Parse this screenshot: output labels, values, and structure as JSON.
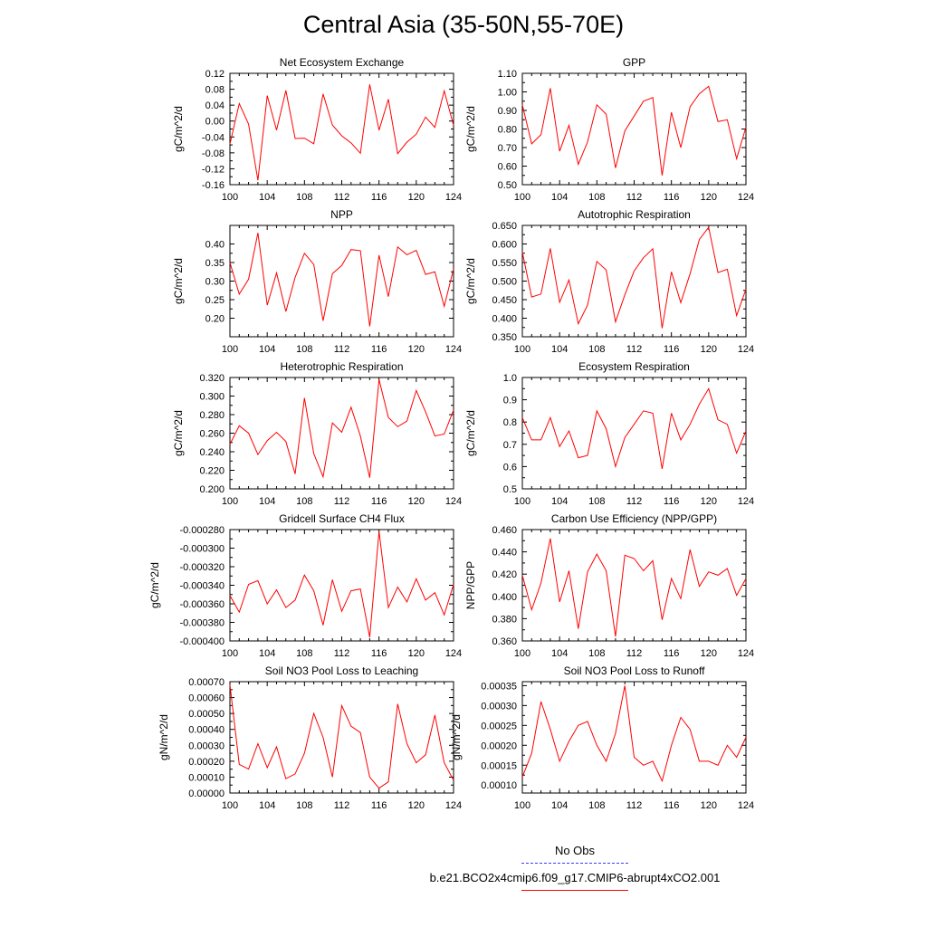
{
  "title": "Central Asia (35-50N,55-70E)",
  "legend": {
    "items": [
      {
        "label": "No Obs",
        "color": "#3a3aff",
        "dashed": true
      },
      {
        "label": "b.e21.BCO2x4cmip6.f09_g17.CMIP6-abrupt4xCO2.001",
        "color": "#ff0000",
        "dashed": false
      }
    ]
  },
  "chart_data": [
    {
      "type": "line",
      "title": "Net Ecosystem Exchange",
      "ylabel": "gC/m^2/d",
      "xlim": [
        100,
        124
      ],
      "ylim": [
        -0.16,
        0.12
      ],
      "xticks": [
        "100",
        "104",
        "108",
        "112",
        "116",
        "120",
        "124"
      ],
      "yticks": [
        "-0.16",
        "-0.12",
        "-0.08",
        "-0.04",
        "0.00",
        "0.04",
        "0.08",
        "0.12"
      ],
      "series": [
        {
          "color": "#ff0000",
          "x": [
            100,
            101,
            102,
            103,
            104,
            105,
            106,
            107,
            108,
            109,
            110,
            111,
            112,
            113,
            114,
            115,
            116,
            117,
            118,
            119,
            120,
            121,
            122,
            123,
            124
          ],
          "y": [
            -0.058,
            0.044,
            -0.008,
            -0.149,
            0.064,
            -0.023,
            0.077,
            -0.044,
            -0.043,
            -0.057,
            0.068,
            -0.01,
            -0.037,
            -0.055,
            -0.081,
            0.092,
            -0.023,
            0.055,
            -0.082,
            -0.053,
            -0.033,
            0.01,
            -0.016,
            0.076,
            -0.011
          ]
        }
      ]
    },
    {
      "type": "line",
      "title": "GPP",
      "ylabel": "gC/m^2/d",
      "xlim": [
        100,
        124
      ],
      "ylim": [
        0.5,
        1.1
      ],
      "xticks": [
        "100",
        "104",
        "108",
        "112",
        "116",
        "120",
        "124"
      ],
      "yticks": [
        "0.50",
        "0.60",
        "0.70",
        "0.80",
        "0.90",
        "1.00",
        "1.10"
      ],
      "series": [
        {
          "color": "#ff0000",
          "x": [
            100,
            101,
            102,
            103,
            104,
            105,
            106,
            107,
            108,
            109,
            110,
            111,
            112,
            113,
            114,
            115,
            116,
            117,
            118,
            119,
            120,
            121,
            122,
            123,
            124
          ],
          "y": [
            0.93,
            0.72,
            0.77,
            1.02,
            0.68,
            0.82,
            0.61,
            0.73,
            0.93,
            0.88,
            0.59,
            0.79,
            0.87,
            0.95,
            0.97,
            0.55,
            0.89,
            0.7,
            0.92,
            0.99,
            1.03,
            0.84,
            0.85,
            0.64,
            0.81
          ]
        }
      ]
    },
    {
      "type": "line",
      "title": "NPP",
      "ylabel": "gC/m^2/d",
      "xlim": [
        100,
        124
      ],
      "ylim": [
        0.15,
        0.45
      ],
      "xticks": [
        "100",
        "104",
        "108",
        "112",
        "116",
        "120",
        "124"
      ],
      "yticks": [
        "0.20",
        "0.25",
        "0.30",
        "0.35",
        "0.40"
      ],
      "yticklevels": [
        0.2,
        0.25,
        0.3,
        0.35,
        0.4
      ],
      "series": [
        {
          "color": "#ff0000",
          "x": [
            100,
            101,
            102,
            103,
            104,
            105,
            106,
            107,
            108,
            109,
            110,
            111,
            112,
            113,
            114,
            115,
            116,
            117,
            118,
            119,
            120,
            121,
            122,
            123,
            124
          ],
          "y": [
            0.35,
            0.265,
            0.305,
            0.43,
            0.235,
            0.322,
            0.218,
            0.31,
            0.375,
            0.345,
            0.193,
            0.32,
            0.342,
            0.385,
            0.382,
            0.178,
            0.37,
            0.258,
            0.392,
            0.371,
            0.383,
            0.318,
            0.325,
            0.232,
            0.333
          ]
        }
      ]
    },
    {
      "type": "line",
      "title": "Autotrophic Respiration",
      "ylabel": "gC/m^2/d",
      "xlim": [
        100,
        124
      ],
      "ylim": [
        0.35,
        0.65
      ],
      "xticks": [
        "100",
        "104",
        "108",
        "112",
        "116",
        "120",
        "124"
      ],
      "yticks": [
        "0.350",
        "0.400",
        "0.450",
        "0.500",
        "0.550",
        "0.600",
        "0.650"
      ],
      "series": [
        {
          "color": "#ff0000",
          "x": [
            100,
            101,
            102,
            103,
            104,
            105,
            106,
            107,
            108,
            109,
            110,
            111,
            112,
            113,
            114,
            115,
            116,
            117,
            118,
            119,
            120,
            121,
            122,
            123,
            124
          ],
          "y": [
            0.578,
            0.457,
            0.465,
            0.588,
            0.443,
            0.503,
            0.385,
            0.435,
            0.553,
            0.53,
            0.39,
            0.463,
            0.527,
            0.563,
            0.587,
            0.373,
            0.525,
            0.442,
            0.52,
            0.612,
            0.645,
            0.523,
            0.532,
            0.407,
            0.478
          ]
        }
      ]
    },
    {
      "type": "line",
      "title": "Heterotrophic Respiration",
      "ylabel": "gC/m^2/d",
      "xlim": [
        100,
        124
      ],
      "ylim": [
        0.2,
        0.32
      ],
      "xticks": [
        "100",
        "104",
        "108",
        "112",
        "116",
        "120",
        "124"
      ],
      "yticks": [
        "0.200",
        "0.220",
        "0.240",
        "0.260",
        "0.280",
        "0.300",
        "0.320"
      ],
      "series": [
        {
          "color": "#ff0000",
          "x": [
            100,
            101,
            102,
            103,
            104,
            105,
            106,
            107,
            108,
            109,
            110,
            111,
            112,
            113,
            114,
            115,
            116,
            117,
            118,
            119,
            120,
            121,
            122,
            123,
            124
          ],
          "y": [
            0.248,
            0.268,
            0.26,
            0.237,
            0.252,
            0.261,
            0.251,
            0.216,
            0.298,
            0.238,
            0.213,
            0.271,
            0.261,
            0.288,
            0.257,
            0.212,
            0.318,
            0.277,
            0.267,
            0.273,
            0.306,
            0.283,
            0.257,
            0.259,
            0.285
          ]
        }
      ]
    },
    {
      "type": "line",
      "title": "Ecosystem Respiration",
      "ylabel": "gC/m^2/d",
      "xlim": [
        100,
        124
      ],
      "ylim": [
        0.5,
        1.0
      ],
      "xticks": [
        "100",
        "104",
        "108",
        "112",
        "116",
        "120",
        "124"
      ],
      "yticks": [
        "0.5",
        "0.6",
        "0.7",
        "0.8",
        "0.9",
        "1.0"
      ],
      "series": [
        {
          "color": "#ff0000",
          "x": [
            100,
            101,
            102,
            103,
            104,
            105,
            106,
            107,
            108,
            109,
            110,
            111,
            112,
            113,
            114,
            115,
            116,
            117,
            118,
            119,
            120,
            121,
            122,
            123,
            124
          ],
          "y": [
            0.82,
            0.72,
            0.72,
            0.82,
            0.69,
            0.76,
            0.64,
            0.65,
            0.85,
            0.77,
            0.6,
            0.73,
            0.79,
            0.85,
            0.84,
            0.59,
            0.84,
            0.72,
            0.79,
            0.88,
            0.95,
            0.81,
            0.79,
            0.66,
            0.76
          ]
        }
      ]
    },
    {
      "type": "line",
      "title": "Gridcell Surface CH4 Flux",
      "ylabel": "gC/m^2/d",
      "xlim": [
        100,
        124
      ],
      "ylim": [
        -0.0004,
        -0.00028
      ],
      "xticks": [
        "100",
        "104",
        "108",
        "112",
        "116",
        "120",
        "124"
      ],
      "yticks": [
        "-0.000400",
        "-0.000380",
        "-0.000360",
        "-0.000340",
        "-0.000320",
        "-0.000300",
        "-0.000280"
      ],
      "series": [
        {
          "color": "#ff0000",
          "x": [
            100,
            101,
            102,
            103,
            104,
            105,
            106,
            107,
            108,
            109,
            110,
            111,
            112,
            113,
            114,
            115,
            116,
            117,
            118,
            119,
            120,
            121,
            122,
            123,
            124
          ],
          "y": [
            -0.000351,
            -0.000369,
            -0.000339,
            -0.000335,
            -0.00036,
            -0.000345,
            -0.000364,
            -0.000356,
            -0.000329,
            -0.000346,
            -0.000383,
            -0.000334,
            -0.000368,
            -0.000346,
            -0.000344,
            -0.000396,
            -0.000282,
            -0.000364,
            -0.000342,
            -0.000358,
            -0.000333,
            -0.000356,
            -0.000348,
            -0.000372,
            -0.000339
          ]
        }
      ]
    },
    {
      "type": "line",
      "title": "Carbon Use Efficiency (NPP/GPP)",
      "ylabel": "NPP/GPP",
      "xlim": [
        100,
        124
      ],
      "ylim": [
        0.36,
        0.46
      ],
      "xticks": [
        "100",
        "104",
        "108",
        "112",
        "116",
        "120",
        "124"
      ],
      "yticks": [
        "0.360",
        "0.380",
        "0.400",
        "0.420",
        "0.440",
        "0.460"
      ],
      "series": [
        {
          "color": "#ff0000",
          "x": [
            100,
            101,
            102,
            103,
            104,
            105,
            106,
            107,
            108,
            109,
            110,
            111,
            112,
            113,
            114,
            115,
            116,
            117,
            118,
            119,
            120,
            121,
            122,
            123,
            124
          ],
          "y": [
            0.419,
            0.388,
            0.412,
            0.452,
            0.395,
            0.423,
            0.371,
            0.422,
            0.438,
            0.423,
            0.364,
            0.437,
            0.434,
            0.423,
            0.432,
            0.379,
            0.416,
            0.398,
            0.442,
            0.409,
            0.422,
            0.419,
            0.425,
            0.401,
            0.416
          ]
        }
      ]
    },
    {
      "type": "line",
      "title": "Soil NO3 Pool Loss to Leaching",
      "ylabel": "gN/m^2/d",
      "xlim": [
        100,
        124
      ],
      "ylim": [
        0.0,
        0.0007
      ],
      "xticks": [
        "100",
        "104",
        "108",
        "112",
        "116",
        "120",
        "124"
      ],
      "yticks": [
        "0.00000",
        "0.00010",
        "0.00020",
        "0.00030",
        "0.00040",
        "0.00050",
        "0.00060",
        "0.00070"
      ],
      "series": [
        {
          "color": "#ff0000",
          "x": [
            100,
            101,
            102,
            103,
            104,
            105,
            106,
            107,
            108,
            109,
            110,
            111,
            112,
            113,
            114,
            115,
            116,
            117,
            118,
            119,
            120,
            121,
            122,
            123,
            124
          ],
          "y": [
            0.00068,
            0.00018,
            0.00015,
            0.00031,
            0.00016,
            0.00029,
            9e-05,
            0.00012,
            0.00025,
            0.0005,
            0.00035,
            0.0001,
            0.00055,
            0.00042,
            0.00038,
            0.0001,
            3e-05,
            7e-05,
            0.00056,
            0.00031,
            0.00019,
            0.00024,
            0.00049,
            0.00019,
            8e-05
          ]
        }
      ]
    },
    {
      "type": "line",
      "title": "Soil NO3 Pool Loss to Runoff",
      "ylabel": "gN/m^2/d",
      "xlim": [
        100,
        124
      ],
      "ylim": [
        8e-05,
        0.00036
      ],
      "xticks": [
        "100",
        "104",
        "108",
        "112",
        "116",
        "120",
        "124"
      ],
      "yticks": [
        "0.00010",
        "0.00015",
        "0.00020",
        "0.00025",
        "0.00030",
        "0.00035"
      ],
      "yticklevels": [
        0.0001,
        0.00015,
        0.0002,
        0.00025,
        0.0003,
        0.00035
      ],
      "series": [
        {
          "color": "#ff0000",
          "x": [
            100,
            101,
            102,
            103,
            104,
            105,
            106,
            107,
            108,
            109,
            110,
            111,
            112,
            113,
            114,
            115,
            116,
            117,
            118,
            119,
            120,
            121,
            122,
            123,
            124
          ],
          "y": [
            0.00012,
            0.00018,
            0.00031,
            0.00024,
            0.00016,
            0.00021,
            0.00025,
            0.00026,
            0.0002,
            0.00016,
            0.00023,
            0.00035,
            0.00017,
            0.00015,
            0.00016,
            0.00011,
            0.0002,
            0.00027,
            0.00024,
            0.00016,
            0.00016,
            0.00015,
            0.0002,
            0.00017,
            0.00022
          ]
        }
      ]
    }
  ]
}
